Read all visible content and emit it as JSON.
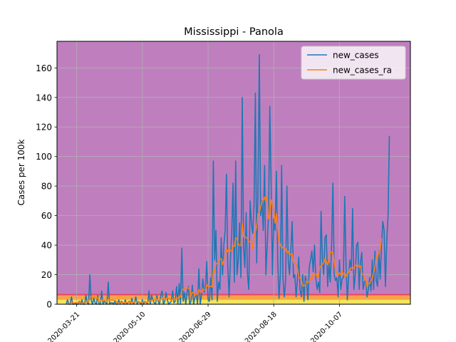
{
  "chart_data": {
    "type": "line",
    "title": "Mississippi - Panola",
    "xlabel": "",
    "ylabel": "Cases per 100k",
    "x_start": "2020-03-13",
    "x_range": [
      "2020-03-06",
      "2020-11-30"
    ],
    "ylim": [
      0,
      178
    ],
    "grid": true,
    "legend_position": "top-right",
    "yticks": [
      0,
      20,
      40,
      60,
      80,
      100,
      120,
      140,
      160
    ],
    "xticks": [
      {
        "label": "2020-03-21",
        "value": "2020-03-21"
      },
      {
        "label": "2020-05-10",
        "value": "2020-05-10"
      },
      {
        "label": "2020-06-29",
        "value": "2020-06-29"
      },
      {
        "label": "2020-08-18",
        "value": "2020-08-18"
      },
      {
        "label": "2020-10-07",
        "value": "2020-10-07"
      }
    ],
    "background_bands": [
      {
        "from": 0,
        "to": 3,
        "color": "#f3e45a"
      },
      {
        "from": 3,
        "to": 6,
        "color": "#f7a348"
      },
      {
        "from": 6,
        "to": 7,
        "color": "#e8455e"
      },
      {
        "from": 7,
        "to": 178,
        "color": "#bf7fbf"
      }
    ],
    "series": [
      {
        "name": "new_cases",
        "color": "#1f77b4",
        "values": [
          0,
          3,
          0,
          0,
          5,
          0,
          0,
          1,
          0,
          0,
          2,
          0,
          3,
          0,
          0,
          6,
          1,
          0,
          20,
          3,
          0,
          4,
          1,
          0,
          6,
          0,
          0,
          9,
          0,
          2,
          1,
          0,
          15,
          0,
          1,
          1,
          0,
          2,
          0,
          0,
          3,
          0,
          2,
          1,
          0,
          3,
          0,
          1,
          2,
          0,
          4,
          0,
          1,
          5,
          0,
          2,
          1,
          0,
          3,
          0,
          2,
          1,
          0,
          9,
          0,
          6,
          3,
          1,
          0,
          6,
          2,
          0,
          6,
          9,
          0,
          2,
          8,
          3,
          0,
          1,
          2,
          9,
          1,
          2,
          12,
          0,
          14,
          0,
          38,
          2,
          8,
          0,
          8,
          12,
          0,
          2,
          13,
          0,
          5,
          7,
          0,
          24,
          0,
          6,
          17,
          8,
          12,
          29,
          3,
          2,
          18,
          3,
          97,
          30,
          50,
          2,
          15,
          10,
          45,
          20,
          40,
          50,
          88,
          25,
          5,
          30,
          48,
          82,
          15,
          97,
          20,
          30,
          55,
          18,
          140,
          40,
          25,
          62,
          20,
          10,
          70,
          55,
          48,
          68,
          143,
          28,
          80,
          169,
          60,
          70,
          50,
          94,
          20,
          40,
          60,
          134,
          80,
          20,
          58,
          50,
          90,
          30,
          4,
          20,
          94,
          18,
          5,
          15,
          80,
          30,
          20,
          37,
          56,
          18,
          20,
          5,
          17,
          32,
          10,
          5,
          20,
          2,
          19,
          15,
          3,
          25,
          30,
          36,
          22,
          40,
          18,
          10,
          15,
          8,
          63,
          31,
          20,
          45,
          47,
          12,
          28,
          15,
          40,
          82,
          20,
          16,
          18,
          5,
          30,
          10,
          17,
          18,
          73,
          26,
          3,
          20,
          30,
          23,
          65,
          10,
          20,
          40,
          42,
          10,
          28,
          35,
          10,
          15,
          16,
          5,
          10,
          18,
          9,
          30,
          10,
          36,
          16,
          12,
          36,
          17,
          40,
          56,
          50,
          12,
          43,
          60,
          114
        ]
      },
      {
        "name": "new_cases_ra",
        "color": "#ff7f0e",
        "values": [
          0,
          0.4,
          0.4,
          0.4,
          1.1,
          1.1,
          0.9,
          1,
          1,
          1,
          1.3,
          0.6,
          0.9,
          0.9,
          0.7,
          1.6,
          1.7,
          1.4,
          4.3,
          4.7,
          4.3,
          4.9,
          5,
          3.9,
          4.6,
          1.8,
          1.7,
          3.1,
          2.3,
          2.6,
          2.6,
          1.7,
          3.9,
          2.7,
          2.7,
          2.9,
          2.7,
          2.7,
          2,
          0.7,
          0.9,
          0.9,
          1.1,
          1.1,
          1,
          1.3,
          1.1,
          1.1,
          1.4,
          0.9,
          1.6,
          1.1,
          1.1,
          1.9,
          1.7,
          1.9,
          1.3,
          1.1,
          1.6,
          1.6,
          1.6,
          1.3,
          1.1,
          2.3,
          2.1,
          2.6,
          2.9,
          3,
          2.9,
          3.9,
          2.7,
          2.6,
          3.4,
          4.7,
          3.4,
          3.4,
          4.1,
          4,
          4.1,
          3.6,
          2.4,
          3.4,
          3.3,
          3,
          4.1,
          3.9,
          5.6,
          4.9,
          9.9,
          9.9,
          10.9,
          10.9,
          11.9,
          10.9,
          9.6,
          6,
          8.1,
          7.6,
          6,
          6.6,
          6.6,
          10.1,
          8.4,
          8.1,
          10.6,
          9.7,
          9.4,
          13.4,
          12.3,
          11.7,
          12.3,
          11.6,
          23.3,
          21.6,
          27.6,
          27.6,
          29.6,
          30.4,
          30.9,
          26.7,
          30.1,
          31.4,
          37.4,
          35.4,
          37.9,
          36.4,
          36,
          39.1,
          39.1,
          45,
          44.3,
          40.6,
          39.9,
          39.6,
          55.1,
          45.7,
          45.3,
          45.3,
          44.4,
          42.1,
          42.4,
          43,
          37.6,
          45.6,
          49,
          52.7,
          61.4,
          62,
          66,
          69.4,
          70.1,
          72.6,
          69.4,
          73.4,
          57.9,
          60.7,
          70.6,
          67.3,
          63.7,
          54.9,
          61.4,
          50.4,
          42.6,
          40.6,
          37.9,
          38.7,
          37.4,
          37.7,
          34.9,
          35.7,
          33.3,
          33.9,
          34.4,
          28.1,
          27.9,
          27.6,
          24.1,
          18.3,
          17.6,
          16.7,
          12.3,
          12.9,
          12.3,
          15.7,
          14.9,
          15.3,
          17.7,
          17.3,
          20.7,
          20.4,
          20.4,
          18.1,
          18.7,
          25,
          25.9,
          26.9,
          28.3,
          31.1,
          29.1,
          26.6,
          29.6,
          35.7,
          34.9,
          35.4,
          28.3,
          22.3,
          21.6,
          19.4,
          21.4,
          19.7,
          22.6,
          20.7,
          18.9,
          18.7,
          21.4,
          21.3,
          24.3,
          24.3,
          25,
          24.3,
          26.6,
          25.9,
          26.7,
          25.1,
          25.9,
          20.6,
          20.4,
          17.1,
          17.1,
          11.9,
          14,
          14,
          16.1,
          17.4,
          21.7,
          24.6,
          32.7,
          31.4,
          35.4,
          36.7,
          44.7
        ]
      }
    ]
  }
}
